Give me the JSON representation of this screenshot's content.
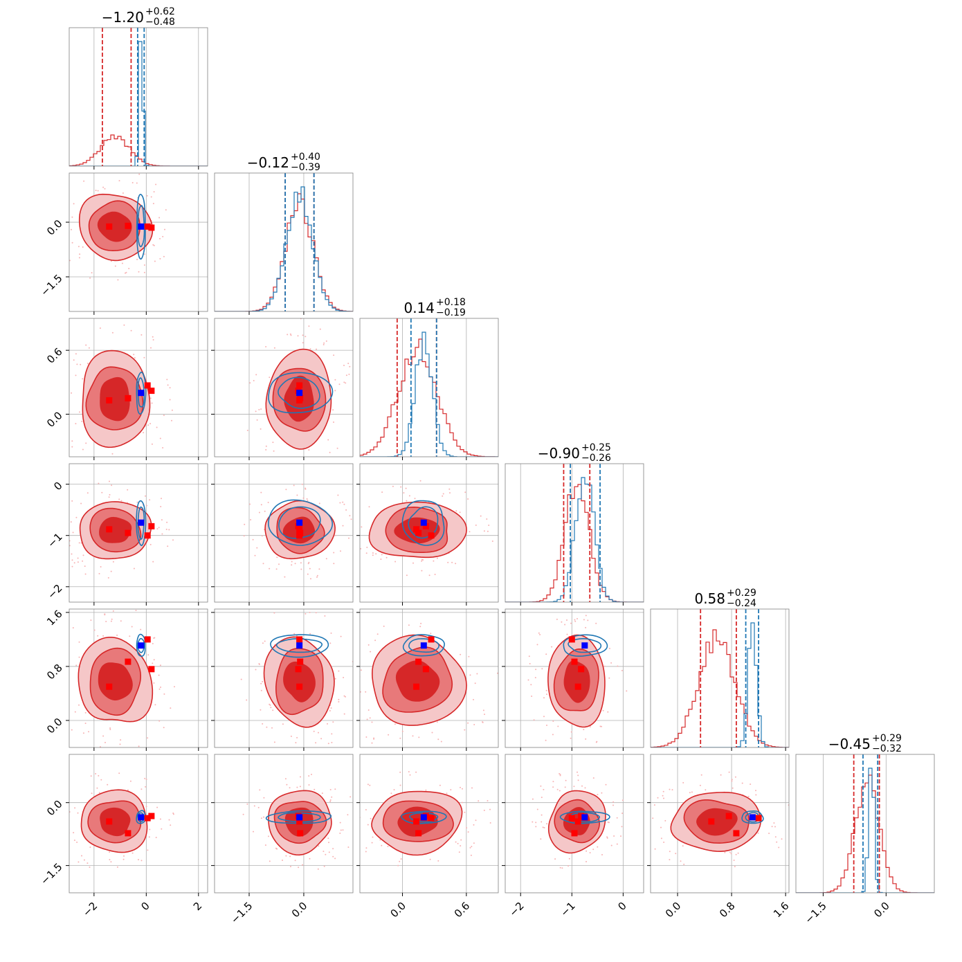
{
  "colors": {
    "primary": "#d62728",
    "secondary": "#1f77b4",
    "primary_fill_inner": "#d62728",
    "primary_fill_mid": "#e8797a",
    "primary_fill_outer": "#f5c7c8",
    "grid": "#b0b0b0",
    "frame": "#808080",
    "marker_primary": "#ff0000",
    "marker_secondary": "#0000ff"
  },
  "chart_data": {
    "type": "corner",
    "n_params": 6,
    "grid": true,
    "param_ranges": [
      [
        -2.95,
        2.35
      ],
      [
        -2.45,
        1.35
      ],
      [
        -0.4,
        0.9
      ],
      [
        -2.3,
        0.4
      ],
      [
        -0.4,
        1.65
      ],
      [
        -2.15,
        1.15
      ]
    ],
    "ticks": [
      {
        "values": [
          -2,
          0,
          2
        ],
        "labels": [
          "−2",
          "0",
          "2"
        ]
      },
      {
        "values": [
          -1.5,
          0.0
        ],
        "labels": [
          "−1.5",
          "0.0"
        ]
      },
      {
        "values": [
          0.0,
          0.6
        ],
        "labels": [
          "0.0",
          "0.6"
        ]
      },
      {
        "values": [
          -2,
          -1,
          0
        ],
        "labels": [
          "−2",
          "−1",
          "0"
        ]
      },
      {
        "values": [
          0.0,
          0.8,
          1.6
        ],
        "labels": [
          "0.0",
          "0.8",
          "1.6"
        ]
      },
      {
        "values": [
          -1.5,
          0.0
        ],
        "labels": [
          "−1.5",
          "0.0"
        ]
      }
    ],
    "titles": [
      {
        "value": "−1.20",
        "plus": "+0.62",
        "minus": "−0.48"
      },
      {
        "value": "−0.12",
        "plus": "+0.40",
        "minus": "−0.39"
      },
      {
        "value": "0.14",
        "plus": "+0.18",
        "minus": "−0.19"
      },
      {
        "value": "−0.90",
        "plus": "+0.25",
        "minus": "−0.26"
      },
      {
        "value": "0.58",
        "plus": "+0.29",
        "minus": "−0.24"
      },
      {
        "value": "−0.45",
        "plus": "+0.29",
        "minus": "−0.32"
      }
    ],
    "posteriors": {
      "primary": {
        "means": [
          -1.2,
          -0.12,
          0.14,
          -0.9,
          0.58,
          -0.45
        ],
        "sds": [
          0.62,
          0.42,
          0.2,
          0.26,
          0.3,
          0.32
        ],
        "quantiles": [
          [
            -1.68,
            -0.58
          ],
          [
            -0.51,
            0.28
          ],
          [
            -0.05,
            0.32
          ],
          [
            -1.16,
            -0.65
          ],
          [
            0.34,
            0.87
          ],
          [
            -0.77,
            -0.16
          ]
        ],
        "markers": [
          [
            -1.42,
            -0.12,
            0.13,
            -0.88,
            0.5,
            -0.45
          ],
          [
            -0.7,
            -0.1,
            0.15,
            -0.95,
            0.87,
            -0.73
          ],
          [
            0.05,
            -0.12,
            0.27,
            -1.0,
            1.2,
            -0.37
          ],
          [
            0.2,
            -0.15,
            0.22,
            -0.82,
            0.76,
            -0.32
          ]
        ]
      },
      "secondary": {
        "means": [
          -0.2,
          -0.12,
          0.2,
          -0.75,
          1.11,
          -0.35
        ],
        "sds": [
          0.08,
          0.39,
          0.09,
          0.2,
          0.07,
          0.07
        ],
        "quantiles": [
          [
            -0.33,
            -0.08
          ],
          [
            -0.51,
            0.28
          ],
          [
            0.08,
            0.32
          ],
          [
            -1.03,
            -0.45
          ],
          [
            1.01,
            1.2
          ],
          [
            -0.55,
            -0.2
          ]
        ],
        "marker": [
          -0.2,
          -0.12,
          0.2,
          -0.75,
          1.11,
          -0.35
        ]
      }
    }
  }
}
